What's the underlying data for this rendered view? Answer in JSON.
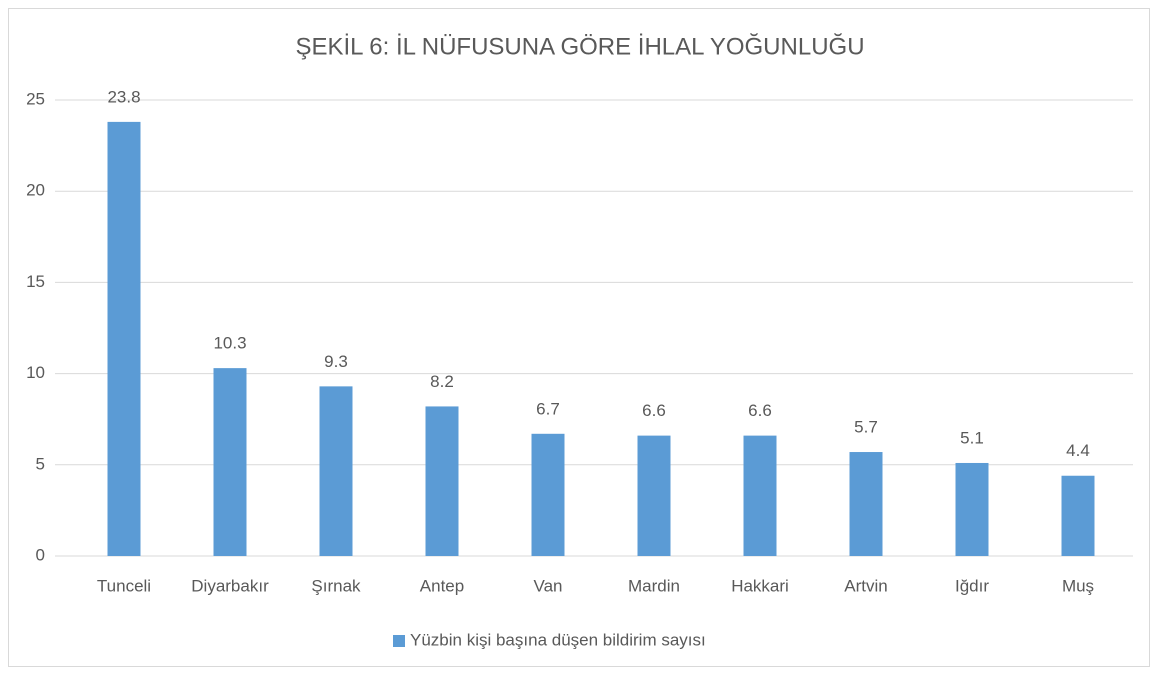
{
  "chart_data": {
    "type": "bar",
    "title": "ŞEKİL 6: İL NÜFUSUNA GÖRE İHLAL YOĞUNLUĞU",
    "categories": [
      "Tunceli",
      "Diyarbakır",
      "Şırnak",
      "Antep",
      "Van",
      "Mardin",
      "Hakkari",
      "Artvin",
      "Iğdır",
      "Muş"
    ],
    "series": [
      {
        "name": "Yüzbin kişi başına düşen bildirim sayısı",
        "color": "#5b9bd5",
        "values": [
          23.8,
          10.3,
          9.3,
          8.2,
          6.7,
          6.6,
          6.6,
          5.7,
          5.1,
          4.4
        ]
      }
    ],
    "ylim": [
      0,
      25
    ],
    "yticks": [
      0,
      5,
      10,
      15,
      20,
      25
    ],
    "grid": true,
    "legend": "bottom"
  }
}
